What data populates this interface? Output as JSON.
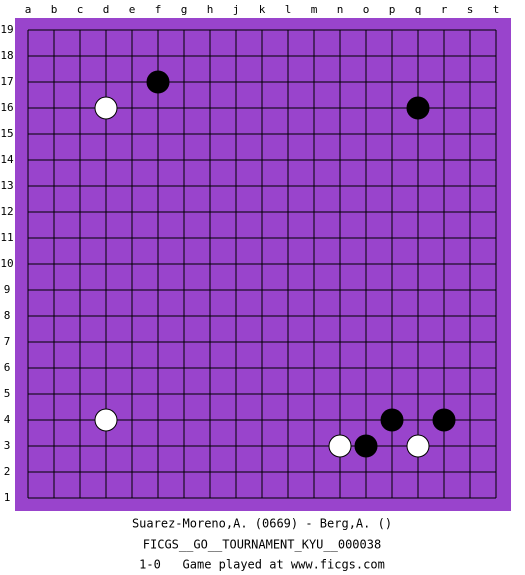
{
  "board": {
    "columns": [
      "a",
      "b",
      "c",
      "d",
      "e",
      "f",
      "g",
      "h",
      "j",
      "k",
      "l",
      "m",
      "n",
      "o",
      "p",
      "q",
      "r",
      "s",
      "t"
    ],
    "rows": [
      19,
      18,
      17,
      16,
      15,
      14,
      13,
      12,
      11,
      10,
      9,
      8,
      7,
      6,
      5,
      4,
      3,
      2,
      1
    ],
    "background": "#9944cc"
  },
  "stones": [
    {
      "color": "black",
      "col": "f",
      "row": 17
    },
    {
      "color": "white",
      "col": "d",
      "row": 16
    },
    {
      "color": "black",
      "col": "q",
      "row": 16
    },
    {
      "color": "white",
      "col": "d",
      "row": 4
    },
    {
      "color": "black",
      "col": "p",
      "row": 4
    },
    {
      "color": "black",
      "col": "r",
      "row": 4
    },
    {
      "color": "white",
      "col": "n",
      "row": 3
    },
    {
      "color": "black",
      "col": "o",
      "row": 3
    },
    {
      "color": "white",
      "col": "q",
      "row": 3
    }
  ],
  "footer": {
    "players": "Suarez-Moreno,A. (0669) - Berg,A. ()",
    "event": "FICGS__GO__TOURNAMENT_KYU__000038",
    "result_line": "1-0   Game played at www.ficgs.com"
  }
}
